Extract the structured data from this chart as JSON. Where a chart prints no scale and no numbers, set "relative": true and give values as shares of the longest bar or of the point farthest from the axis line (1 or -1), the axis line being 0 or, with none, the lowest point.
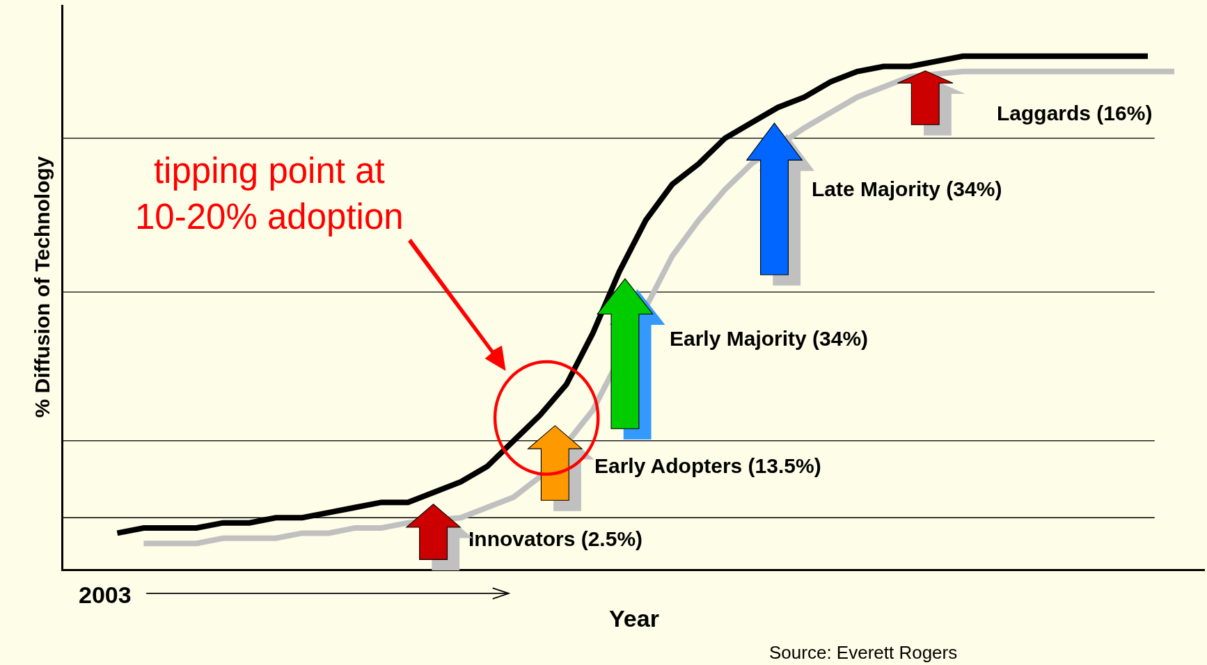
{
  "chart_data": {
    "type": "line",
    "relative": true,
    "ylabel": "% Diffusion of Technology",
    "xlabel": "Year",
    "categories": [
      null,
      null,
      null,
      null,
      null,
      null,
      null,
      null,
      null,
      null,
      null,
      null,
      null,
      null,
      null,
      null,
      null,
      null,
      null,
      null,
      null,
      null,
      null,
      null,
      null,
      null,
      null,
      null,
      null,
      null,
      null,
      null,
      null,
      null,
      null,
      null,
      null,
      null,
      null,
      null,
      null
    ],
    "series": [
      {
        "color": "#000000",
        "values": [
          0.07,
          0.08,
          0.08,
          0.08,
          0.09,
          0.09,
          0.1,
          0.1,
          0.11,
          0.12,
          0.13,
          0.13,
          0.15,
          0.17,
          0.2,
          0.25,
          0.3,
          0.36,
          0.46,
          0.58,
          0.68,
          0.75,
          0.79,
          0.84,
          0.87,
          0.9,
          0.92,
          0.95,
          0.97,
          0.98,
          0.98,
          0.99,
          1.0,
          1.0,
          1.0,
          1.0,
          1.0,
          1.0,
          1.0,
          1.0,
          null
        ]
      },
      {
        "color": "#c0c0c0",
        "values": [
          null,
          0.05,
          0.05,
          0.05,
          0.06,
          0.06,
          0.06,
          0.07,
          0.07,
          0.08,
          0.08,
          0.09,
          null,
          0.1,
          0.12,
          0.14,
          0.18,
          null,
          0.31,
          null,
          null,
          0.61,
          0.68,
          0.74,
          0.79,
          null,
          0.86,
          0.89,
          0.92,
          0.94,
          0.96,
          null,
          0.97,
          0.97,
          0.97,
          0.97,
          0.97,
          0.97,
          0.97,
          0.97,
          0.97
        ]
      }
    ],
    "ref_lines": [
      {
        "axis": "y",
        "value": 0.1,
        "color": "#000000",
        "line_style": "solid"
      },
      {
        "axis": "y",
        "value": 0.25,
        "color": "#000000",
        "line_style": "solid"
      },
      {
        "axis": "y",
        "value": 0.54,
        "color": "#000000",
        "line_style": "solid"
      },
      {
        "axis": "y",
        "value": 0.84,
        "color": "#000000",
        "line_style": "solid"
      }
    ],
    "annotations": [
      "tipping point at\n10-20% adoption",
      "Innovators (2.5%)",
      "Early Adopters (13.5%)",
      "Early Majority (34%)",
      "Late Majority (34%)",
      "Laggards (16%)",
      "2003",
      "Source: Everett Rogers"
    ],
    "marker": "none",
    "line_style": "solid"
  }
}
